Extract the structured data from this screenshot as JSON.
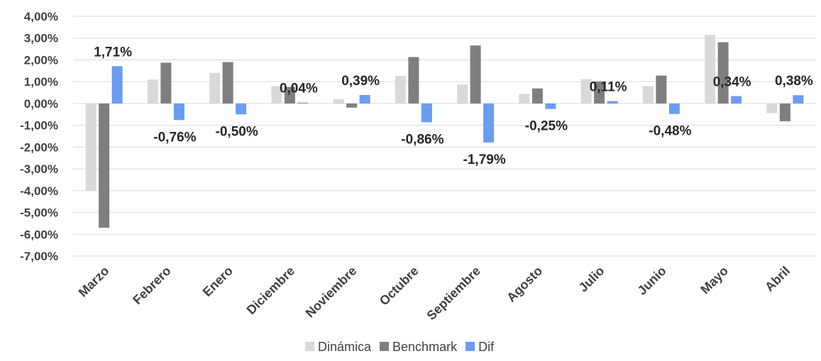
{
  "chart_data": {
    "type": "bar",
    "title": "",
    "xlabel": "",
    "ylabel": "",
    "ylim": [
      -0.07,
      0.04
    ],
    "yticks": [
      "4,00%",
      "3,00%",
      "2,00%",
      "1,00%",
      "0,00%",
      "-1,00%",
      "-2,00%",
      "-3,00%",
      "-4,00%",
      "-5,00%",
      "-6,00%",
      "-7,00%"
    ],
    "categories": [
      "Marzo",
      "Febrero",
      "Enero",
      "Diciembre",
      "Noviembre",
      "Octubre",
      "Septiembre",
      "Agosto",
      "Julio",
      "Junio",
      "Mayo",
      "Abril"
    ],
    "series": [
      {
        "name": "Dinámica",
        "color": "#d9d9d9",
        "values": [
          -0.04,
          0.011,
          0.014,
          0.008,
          0.002,
          0.0127,
          0.0087,
          0.0044,
          0.0112,
          0.008,
          0.0315,
          -0.0044
        ]
      },
      {
        "name": "Benchmark",
        "color": "#7f7f7f",
        "values": [
          -0.057,
          0.0187,
          0.019,
          0.0076,
          -0.0019,
          0.0213,
          0.0266,
          0.0069,
          0.0101,
          0.0128,
          0.0281,
          -0.0082
        ]
      },
      {
        "name": "Dif",
        "color": "#6a9cf2",
        "values": [
          0.0171,
          -0.0076,
          -0.005,
          0.0004,
          0.0039,
          -0.0086,
          -0.0179,
          -0.0025,
          0.0011,
          -0.0048,
          0.0034,
          0.0038
        ],
        "labels": [
          "1,71%",
          "-0,76%",
          "-0,50%",
          "0,04%",
          "0,39%",
          "-0,86%",
          "-1,79%",
          "-0,25%",
          "0,11%",
          "-0,48%",
          "0,34%",
          "0,38%"
        ]
      }
    ],
    "grid": true,
    "legend": "bottom"
  }
}
